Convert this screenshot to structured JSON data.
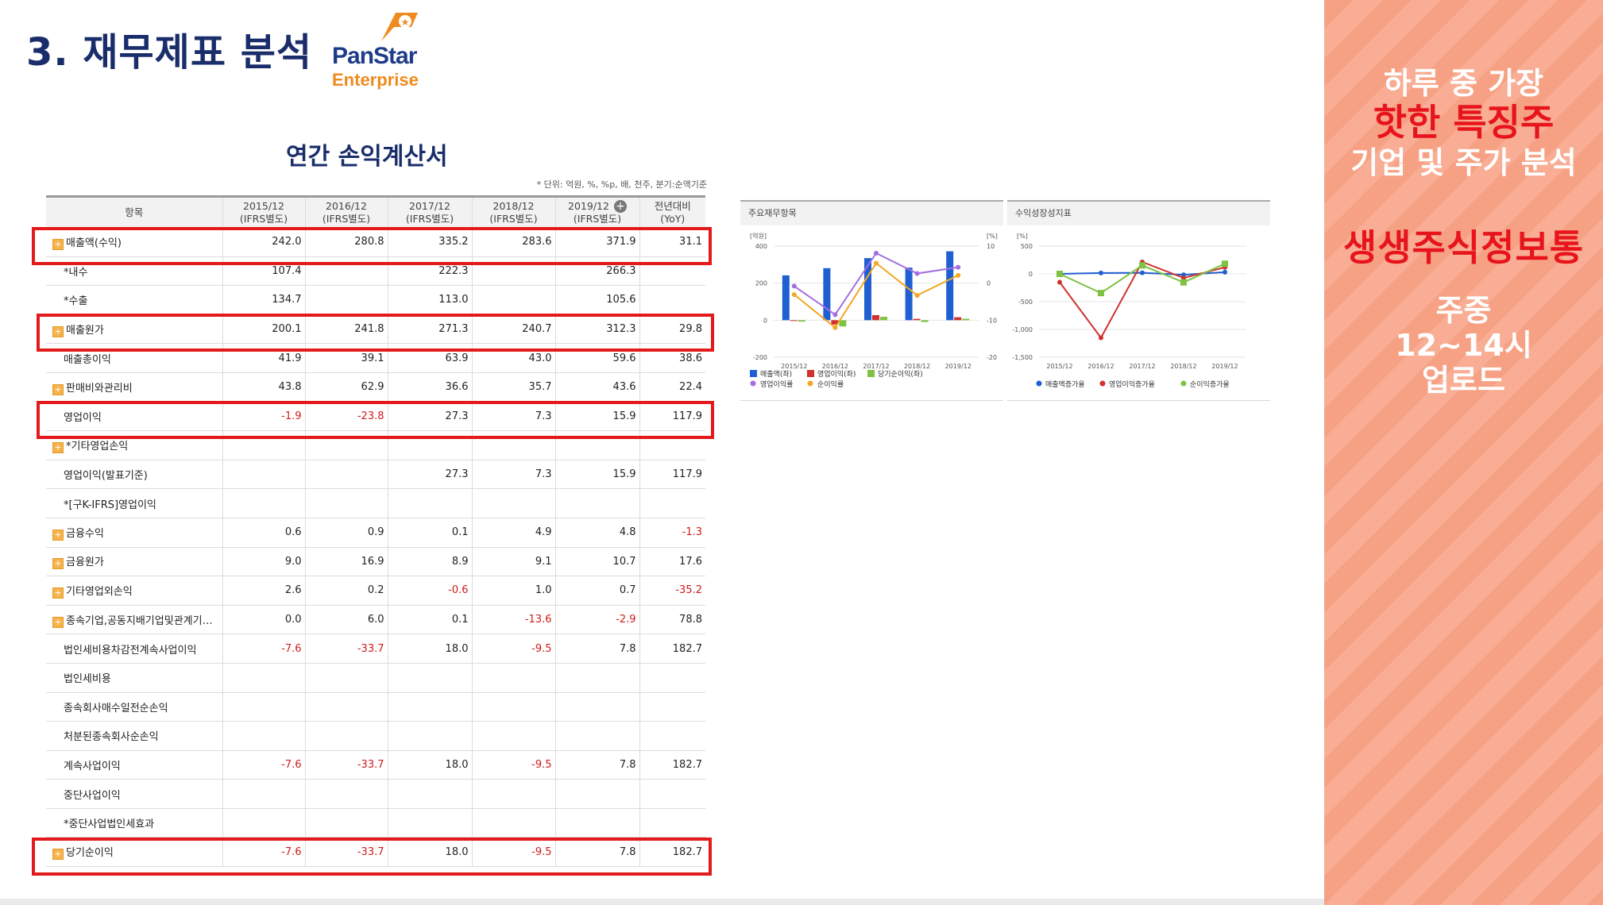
{
  "page_title": "3. 재무제표 분석",
  "logo": {
    "name_line1": "PanStar",
    "name_line2": "Enterprise",
    "brand_color": "#1e3c8a",
    "accent_color": "#f08a1c"
  },
  "table_title": "연간 손익계산서",
  "unit_note": "* 단위: 억원, %, %p, 배, 천주, 분기:순액기준",
  "table": {
    "header_item": "항목",
    "columns": [
      {
        "period": "2015/12",
        "basis": "(IFRS별도)"
      },
      {
        "period": "2016/12",
        "basis": "(IFRS별도)"
      },
      {
        "period": "2017/12",
        "basis": "(IFRS별도)"
      },
      {
        "period": "2018/12",
        "basis": "(IFRS별도)"
      },
      {
        "period": "2019/12",
        "basis": "(IFRS별도)"
      },
      {
        "period": "전년대비",
        "basis": "(YoY)"
      }
    ],
    "rows": [
      {
        "label": "매출액(수익)",
        "expand": true,
        "values": [
          "242.0",
          "280.8",
          "335.2",
          "283.6",
          "371.9",
          "31.1"
        ]
      },
      {
        "label": "*내수",
        "expand": false,
        "values": [
          "107.4",
          "",
          "222.3",
          "",
          "266.3",
          ""
        ]
      },
      {
        "label": "*수출",
        "expand": false,
        "values": [
          "134.7",
          "",
          "113.0",
          "",
          "105.6",
          ""
        ]
      },
      {
        "label": "매출원가",
        "expand": true,
        "values": [
          "200.1",
          "241.8",
          "271.3",
          "240.7",
          "312.3",
          "29.8"
        ]
      },
      {
        "label": "매출총이익",
        "expand": false,
        "values": [
          "41.9",
          "39.1",
          "63.9",
          "43.0",
          "59.6",
          "38.6"
        ]
      },
      {
        "label": "판매비와관리비",
        "expand": true,
        "values": [
          "43.8",
          "62.9",
          "36.6",
          "35.7",
          "43.6",
          "22.4"
        ]
      },
      {
        "label": "영업이익",
        "expand": false,
        "values": [
          "-1.9",
          "-23.8",
          "27.3",
          "7.3",
          "15.9",
          "117.9"
        ]
      },
      {
        "label": "*기타영업손익",
        "expand": true,
        "values": [
          "",
          "",
          "",
          "",
          "",
          ""
        ]
      },
      {
        "label": "영업이익(발표기준)",
        "expand": false,
        "values": [
          "",
          "",
          "27.3",
          "7.3",
          "15.9",
          "117.9"
        ]
      },
      {
        "label": "*[구K-IFRS]영업이익",
        "expand": false,
        "values": [
          "",
          "",
          "",
          "",
          "",
          ""
        ]
      },
      {
        "label": "금융수익",
        "expand": true,
        "values": [
          "0.6",
          "0.9",
          "0.1",
          "4.9",
          "4.8",
          "-1.3"
        ]
      },
      {
        "label": "금융원가",
        "expand": true,
        "values": [
          "9.0",
          "16.9",
          "8.9",
          "9.1",
          "10.7",
          "17.6"
        ]
      },
      {
        "label": "기타영업외손익",
        "expand": true,
        "values": [
          "2.6",
          "0.2",
          "-0.6",
          "1.0",
          "0.7",
          "-35.2"
        ]
      },
      {
        "label": "종속기업,공동지배기업및관계기…",
        "expand": true,
        "values": [
          "0.0",
          "6.0",
          "0.1",
          "-13.6",
          "-2.9",
          "78.8"
        ]
      },
      {
        "label": "법인세비용차감전계속사업이익",
        "expand": false,
        "values": [
          "-7.6",
          "-33.7",
          "18.0",
          "-9.5",
          "7.8",
          "182.7"
        ]
      },
      {
        "label": "법인세비용",
        "expand": false,
        "values": [
          "",
          "",
          "",
          "",
          "",
          ""
        ]
      },
      {
        "label": "종속회사매수일전순손익",
        "expand": false,
        "values": [
          "",
          "",
          "",
          "",
          "",
          ""
        ]
      },
      {
        "label": "처분된종속회사순손익",
        "expand": false,
        "values": [
          "",
          "",
          "",
          "",
          "",
          ""
        ]
      },
      {
        "label": "계속사업이익",
        "expand": false,
        "values": [
          "-7.6",
          "-33.7",
          "18.0",
          "-9.5",
          "7.8",
          "182.7"
        ]
      },
      {
        "label": "중단사업이익",
        "expand": false,
        "values": [
          "",
          "",
          "",
          "",
          "",
          ""
        ]
      },
      {
        "label": "*중단사업법인세효과",
        "expand": false,
        "values": [
          "",
          "",
          "",
          "",
          "",
          ""
        ]
      },
      {
        "label": "당기순이익",
        "expand": true,
        "values": [
          "-7.6",
          "-33.7",
          "18.0",
          "-9.5",
          "7.8",
          "182.7"
        ]
      }
    ]
  },
  "colors": {
    "negative": "#d11a1a",
    "highlight_box": "#e3191c",
    "title": "#1a2d6b"
  },
  "chart_data": [
    {
      "type": "bar",
      "title": "주요재무항목",
      "left_unit": "[억원]",
      "right_unit": "[%]",
      "categories": [
        "2015/12",
        "2016/12",
        "2017/12",
        "2018/12",
        "2019/12"
      ],
      "ylim_left": [
        -200,
        400
      ],
      "yticks_left": [
        "400",
        "200",
        "0",
        "-200"
      ],
      "ylim_right": [
        -20,
        10
      ],
      "yticks_right": [
        "10",
        "0",
        "-10",
        "-20"
      ],
      "series": [
        {
          "name": "매출액(좌)",
          "kind": "bar",
          "axis": "left",
          "color": "#1f5fd1",
          "values": [
            242.0,
            280.8,
            335.2,
            283.6,
            371.9
          ]
        },
        {
          "name": "영업이익(좌)",
          "kind": "bar",
          "axis": "left",
          "color": "#d0312d",
          "values": [
            -1.9,
            -23.8,
            27.3,
            7.3,
            15.9
          ]
        },
        {
          "name": "당기순이익(좌)",
          "kind": "bar",
          "axis": "left",
          "color": "#7dc242",
          "values": [
            -7.6,
            -33.7,
            18.0,
            -9.5,
            7.8
          ]
        },
        {
          "name": "영업이익률",
          "kind": "line",
          "axis": "right",
          "color": "#a56ee0",
          "values": [
            -0.8,
            -8.5,
            8.1,
            2.6,
            4.3
          ]
        },
        {
          "name": "순이익률",
          "kind": "line",
          "axis": "right",
          "color": "#f5a623",
          "values": [
            -3.1,
            -12.0,
            5.4,
            -3.3,
            2.1
          ]
        }
      ]
    },
    {
      "type": "line",
      "title": "수익성장성지표",
      "unit": "[%]",
      "categories": [
        "2015/12",
        "2016/12",
        "2017/12",
        "2018/12",
        "2019/12"
      ],
      "ylim": [
        -1500,
        500
      ],
      "yticks": [
        "500",
        "0",
        "-500",
        "-1,000",
        "-1,500"
      ],
      "series": [
        {
          "name": "매출액증가율",
          "color": "#1f5fd1",
          "values": [
            0,
            16.0,
            19.4,
            -15.4,
            31.1
          ]
        },
        {
          "name": "영업이익증가율",
          "color": "#d0312d",
          "values": [
            -150,
            -1150,
            215,
            -73,
            117.9
          ]
        },
        {
          "name": "순이익증가율",
          "color": "#7dc242",
          "values": [
            0,
            -345,
            153,
            -153,
            182.7
          ]
        }
      ]
    }
  ],
  "sidebar": {
    "line1": "하루 중 가장",
    "line2": "핫한 특징주",
    "line3": "기업 및 주가 분석",
    "brand": "생생주식정보통",
    "time_line1": "주중",
    "time_line2": "12~14시",
    "time_line3": "업로드"
  }
}
